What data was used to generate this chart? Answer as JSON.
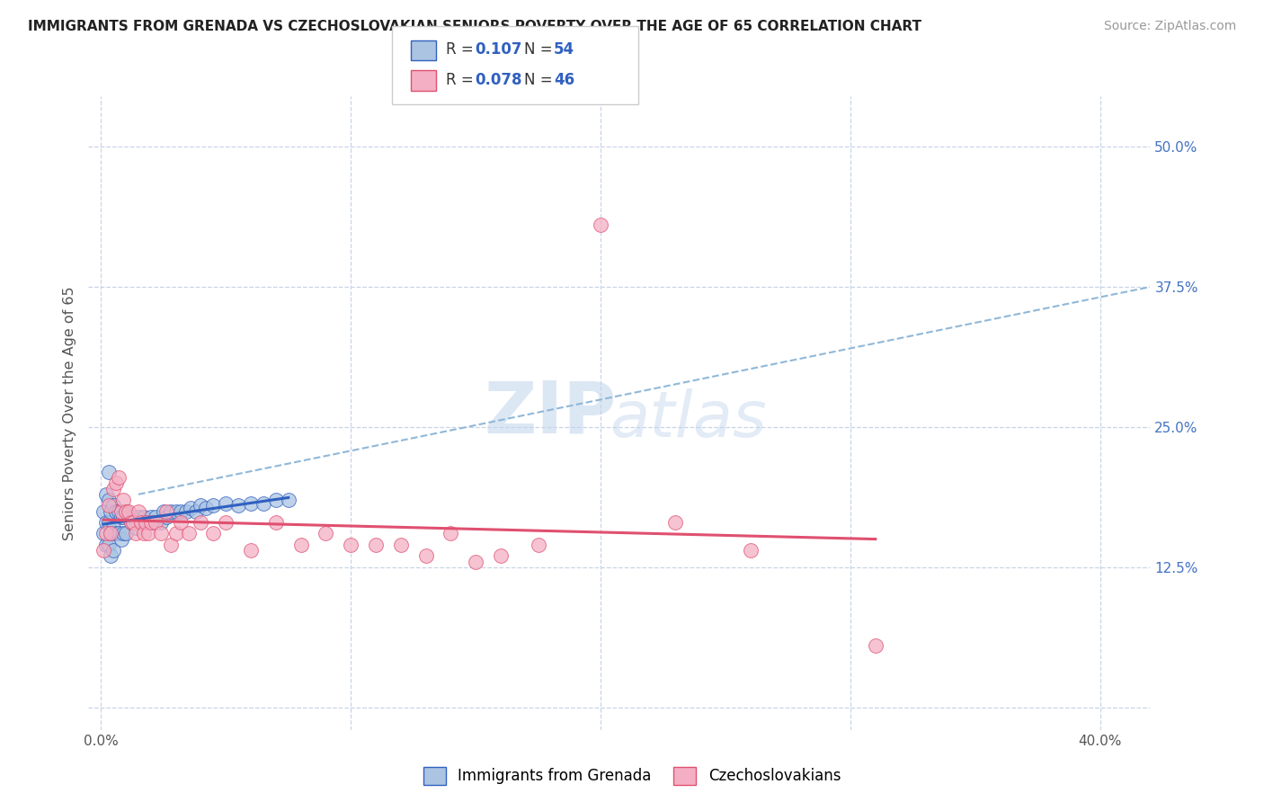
{
  "title": "IMMIGRANTS FROM GRENADA VS CZECHOSLOVAKIAN SENIORS POVERTY OVER THE AGE OF 65 CORRELATION CHART",
  "source": "Source: ZipAtlas.com",
  "ylabel": "Seniors Poverty Over the Age of 65",
  "legend1_label": "Immigrants from Grenada",
  "legend2_label": "Czechoslovakians",
  "R1": 0.107,
  "N1": 54,
  "R2": 0.078,
  "N2": 46,
  "color1": "#aac4e2",
  "color2": "#f4afc4",
  "line_color1": "#3060c0",
  "line_color2": "#e05070",
  "dash_color": "#90b8d8",
  "x_ticks": [
    0.0,
    0.1,
    0.2,
    0.3,
    0.4
  ],
  "y_ticks": [
    0.0,
    0.125,
    0.25,
    0.375,
    0.5
  ],
  "xlim": [
    -0.005,
    0.42
  ],
  "ylim": [
    -0.02,
    0.545
  ],
  "background_color": "#ffffff",
  "grid_color": "#c8d4e8",
  "scatter1_x": [
    0.001,
    0.001,
    0.002,
    0.002,
    0.002,
    0.003,
    0.003,
    0.003,
    0.003,
    0.004,
    0.004,
    0.004,
    0.005,
    0.005,
    0.005,
    0.006,
    0.006,
    0.007,
    0.007,
    0.008,
    0.008,
    0.009,
    0.009,
    0.01,
    0.01,
    0.011,
    0.012,
    0.013,
    0.014,
    0.015,
    0.016,
    0.017,
    0.018,
    0.02,
    0.021,
    0.022,
    0.024,
    0.025,
    0.026,
    0.028,
    0.03,
    0.032,
    0.034,
    0.036,
    0.038,
    0.04,
    0.042,
    0.045,
    0.05,
    0.055,
    0.06,
    0.065,
    0.07,
    0.075
  ],
  "scatter1_y": [
    0.175,
    0.155,
    0.19,
    0.165,
    0.145,
    0.21,
    0.185,
    0.165,
    0.145,
    0.175,
    0.155,
    0.135,
    0.18,
    0.16,
    0.14,
    0.175,
    0.155,
    0.175,
    0.155,
    0.17,
    0.15,
    0.17,
    0.155,
    0.175,
    0.155,
    0.17,
    0.165,
    0.17,
    0.16,
    0.17,
    0.165,
    0.17,
    0.165,
    0.17,
    0.165,
    0.17,
    0.165,
    0.175,
    0.17,
    0.175,
    0.175,
    0.175,
    0.175,
    0.178,
    0.175,
    0.18,
    0.178,
    0.18,
    0.182,
    0.18,
    0.182,
    0.182,
    0.185,
    0.185
  ],
  "scatter2_x": [
    0.001,
    0.002,
    0.003,
    0.004,
    0.005,
    0.006,
    0.007,
    0.008,
    0.009,
    0.01,
    0.011,
    0.012,
    0.013,
    0.014,
    0.015,
    0.016,
    0.017,
    0.018,
    0.019,
    0.02,
    0.022,
    0.024,
    0.026,
    0.028,
    0.03,
    0.032,
    0.035,
    0.04,
    0.045,
    0.05,
    0.06,
    0.07,
    0.08,
    0.09,
    0.1,
    0.11,
    0.12,
    0.13,
    0.14,
    0.15,
    0.16,
    0.175,
    0.2,
    0.23,
    0.26,
    0.31
  ],
  "scatter2_y": [
    0.14,
    0.155,
    0.18,
    0.155,
    0.195,
    0.2,
    0.205,
    0.175,
    0.185,
    0.175,
    0.175,
    0.165,
    0.165,
    0.155,
    0.175,
    0.165,
    0.155,
    0.165,
    0.155,
    0.165,
    0.165,
    0.155,
    0.175,
    0.145,
    0.155,
    0.165,
    0.155,
    0.165,
    0.155,
    0.165,
    0.14,
    0.165,
    0.145,
    0.155,
    0.145,
    0.145,
    0.145,
    0.135,
    0.155,
    0.13,
    0.135,
    0.145,
    0.43,
    0.165,
    0.14,
    0.055
  ],
  "watermark_zip": "ZIP",
  "watermark_atlas": "atlas"
}
